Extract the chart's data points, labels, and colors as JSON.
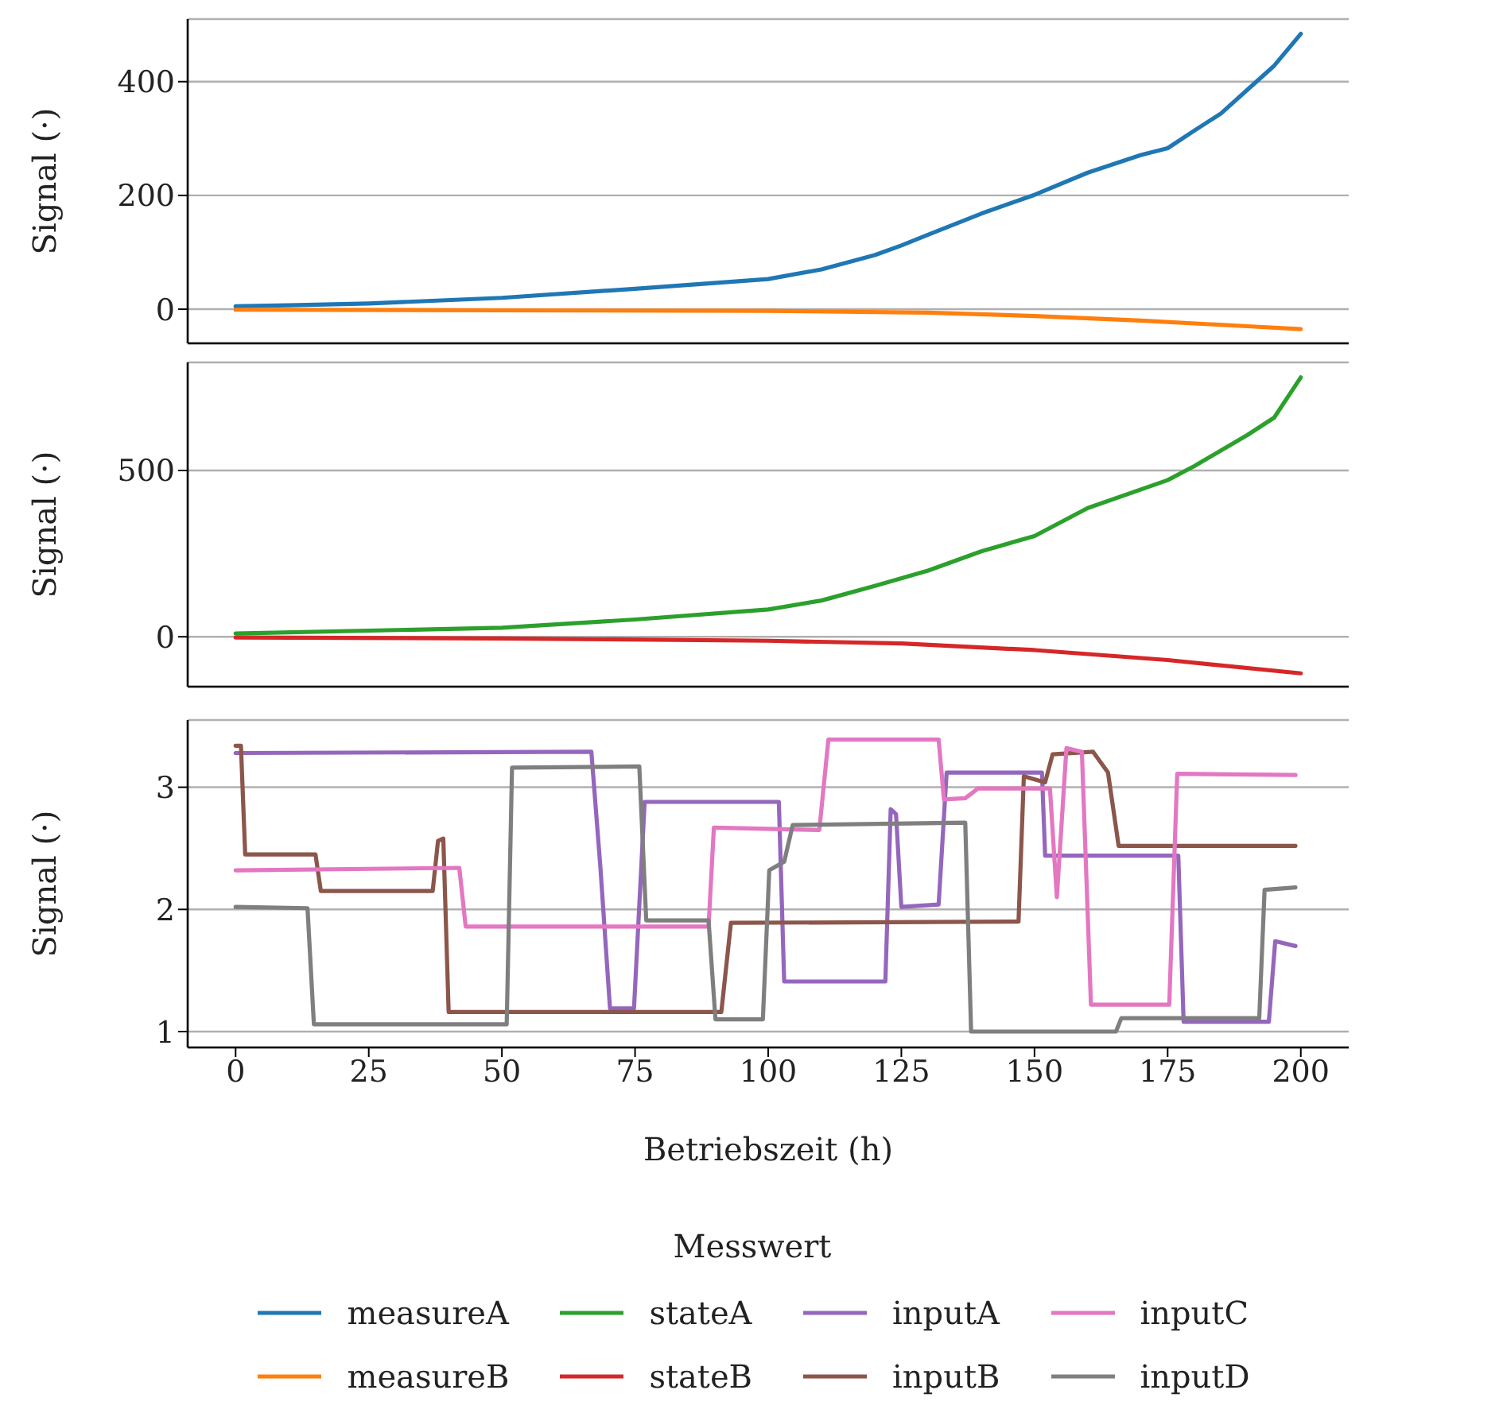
{
  "chart_data": [
    {
      "type": "line",
      "ylabel": "Signal (·)",
      "xlim": [
        -9,
        209
      ],
      "xticks": [
        0,
        25,
        50,
        75,
        100,
        125,
        150,
        175,
        200
      ],
      "ylim": [
        -60,
        510
      ],
      "yticks": [
        0,
        200,
        400
      ],
      "grid": "y",
      "tick_labels": "y",
      "legend": "bottom",
      "series": [
        {
          "name": "measureA",
          "color": "#1f77b4",
          "x": [
            0,
            10,
            25,
            50,
            75,
            100,
            110,
            120,
            125,
            130,
            140,
            150,
            160,
            170,
            175,
            180,
            185,
            190,
            195,
            200
          ],
          "values": [
            5,
            7,
            10,
            20,
            36,
            53,
            70,
            95,
            112,
            131,
            168,
            201,
            240,
            271,
            283,
            314,
            344,
            386,
            428,
            484
          ]
        },
        {
          "name": "measureB",
          "color": "#ff7f0e",
          "x": [
            0,
            50,
            100,
            130,
            150,
            170,
            190,
            200
          ],
          "values": [
            -1,
            -2,
            -3,
            -6,
            -12,
            -20,
            -30,
            -35
          ]
        }
      ]
    },
    {
      "type": "line",
      "ylabel": "Signal (·)",
      "xlim": [
        -9,
        209
      ],
      "xticks": [
        0,
        25,
        50,
        75,
        100,
        125,
        150,
        175,
        200
      ],
      "ylim": [
        -150,
        825
      ],
      "yticks": [
        0,
        500
      ],
      "grid": "y",
      "tick_labels": "y",
      "legend": "bottom",
      "series": [
        {
          "name": "stateA",
          "color": "#2ca02c",
          "x": [
            0,
            50,
            75,
            100,
            110,
            120,
            130,
            140,
            150,
            160,
            175,
            180,
            190,
            195,
            200
          ],
          "values": [
            10,
            27,
            52,
            82,
            109,
            153,
            199,
            257,
            303,
            387,
            471,
            513,
            607,
            659,
            780
          ]
        },
        {
          "name": "stateB",
          "color": "#d62728",
          "x": [
            0,
            50,
            100,
            125,
            150,
            175,
            200
          ],
          "values": [
            -2,
            -5,
            -12,
            -20,
            -40,
            -70,
            -110
          ]
        }
      ]
    },
    {
      "type": "line",
      "ylabel": "Signal (·)",
      "xlabel": "Betriebszeit (h)",
      "xlim": [
        -9,
        209
      ],
      "xticks": [
        0,
        25,
        50,
        75,
        100,
        125,
        150,
        175,
        200
      ],
      "ylim": [
        0.87,
        3.55
      ],
      "yticks": [
        1,
        2,
        3
      ],
      "grid": "y",
      "legend": "bottom",
      "legend_title": "Messwert",
      "series": [
        {
          "name": "inputA",
          "color": "#9467bd",
          "x": [
            0,
            66.8,
            68.5,
            70.3,
            74.8,
            76.8,
            102,
            103,
            122,
            123,
            124,
            125,
            132,
            133.5,
            151.4,
            152,
            177,
            178,
            194,
            195.2,
            199
          ],
          "values": [
            3.28,
            3.29,
            2.34,
            1.19,
            1.19,
            2.88,
            2.88,
            1.41,
            1.41,
            2.82,
            2.78,
            2.02,
            2.04,
            3.12,
            3.12,
            2.44,
            2.44,
            1.08,
            1.08,
            1.74,
            1.7
          ]
        },
        {
          "name": "inputB",
          "color": "#8c564b",
          "x": [
            0,
            1,
            1.8,
            15,
            16,
            37,
            38,
            39,
            40,
            91.2,
            93,
            147,
            148,
            152,
            153.4,
            161,
            163.8,
            165.8,
            199
          ],
          "values": [
            3.34,
            3.34,
            2.45,
            2.45,
            2.15,
            2.15,
            2.56,
            2.58,
            1.16,
            1.16,
            1.89,
            1.9,
            3.09,
            3.04,
            3.27,
            3.29,
            3.12,
            2.52,
            2.52
          ]
        },
        {
          "name": "inputC",
          "color": "#e377c2",
          "x": [
            0,
            42,
            43.2,
            88.8,
            89.8,
            109.6,
            111.3,
            132,
            133,
            137,
            139.4,
            152.9,
            154.2,
            156,
            158.9,
            160.6,
            175.3,
            176.8,
            199
          ],
          "values": [
            2.32,
            2.34,
            1.86,
            1.86,
            2.67,
            2.65,
            3.39,
            3.39,
            2.9,
            2.91,
            2.99,
            2.99,
            2.1,
            3.32,
            3.29,
            1.22,
            1.22,
            3.11,
            3.1
          ]
        },
        {
          "name": "inputD",
          "color": "#7f7f7f",
          "x": [
            0,
            13.5,
            14.7,
            50.9,
            51.9,
            75.8,
            77.1,
            88.8,
            90.1,
            99,
            100.2,
            103,
            104.6,
            137,
            138.1,
            165.3,
            166.3,
            192.2,
            193.2,
            199
          ],
          "values": [
            2.02,
            2.01,
            1.06,
            1.06,
            3.16,
            3.17,
            1.91,
            1.91,
            1.1,
            1.1,
            2.32,
            2.39,
            2.69,
            2.71,
            1.0,
            1.0,
            1.11,
            1.11,
            2.16,
            2.18
          ]
        }
      ]
    }
  ]
}
